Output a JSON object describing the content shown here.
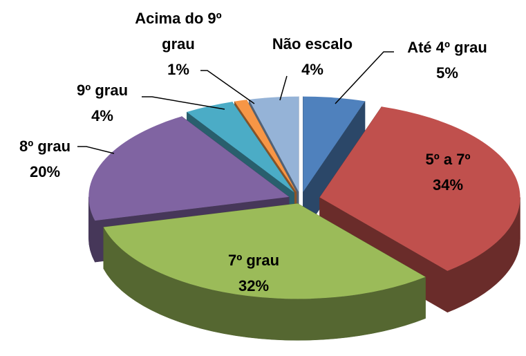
{
  "chart_data": {
    "type": "pie",
    "categories": [
      "Até 4º grau",
      "5º a 7º",
      "7º grau",
      "8º grau",
      "9º grau",
      "Acima do 9º grau",
      "Não escalo"
    ],
    "values": [
      5,
      34,
      32,
      20,
      4,
      1,
      4
    ],
    "value_labels": [
      "5%",
      "34%",
      "32%",
      "20%",
      "4%",
      "1%",
      "4%"
    ],
    "colors": [
      "#4F81BD",
      "#C0504D",
      "#9BBB59",
      "#8064A2",
      "#4BACC6",
      "#F79646",
      "#95B3D7"
    ]
  }
}
